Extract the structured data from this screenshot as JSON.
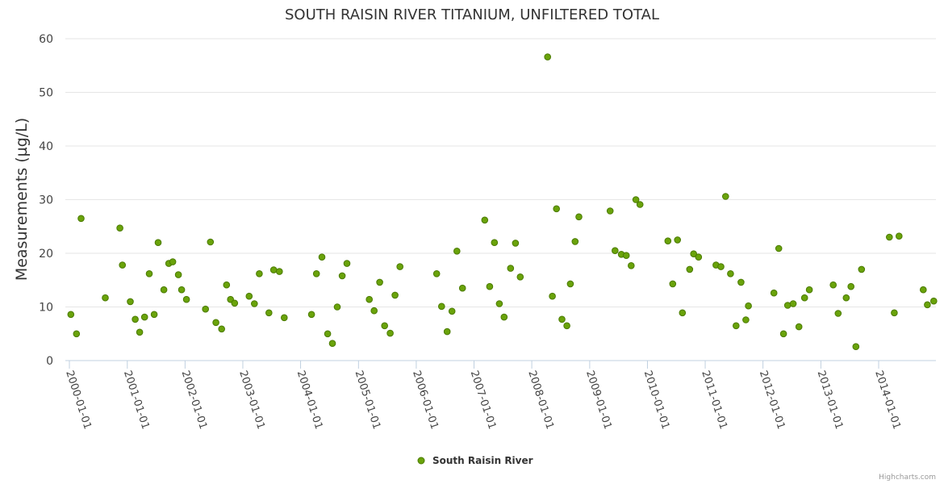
{
  "credits": "Highcharts.com",
  "colors": {
    "marker_fill": "#6aa30a",
    "marker_stroke": "#4a7a00"
  },
  "chart_data": {
    "type": "scatter",
    "title": "SOUTH RAISIN RIVER TITANIUM, UNFILTERED TOTAL",
    "xlabel": "",
    "ylabel": "Measurements (µg/L)",
    "ylim": [
      0,
      60
    ],
    "yticks": [
      "0",
      "10",
      "20",
      "30",
      "40",
      "50",
      "60"
    ],
    "xlim": [
      "2000-01-01",
      "2014-12-31"
    ],
    "xticks": [
      "2000-01-01",
      "2001-01-01",
      "2002-01-01",
      "2003-01-01",
      "2004-01-01",
      "2005-01-01",
      "2006-01-01",
      "2007-01-01",
      "2008-01-01",
      "2009-01-01",
      "2010-01-01",
      "2011-01-01",
      "2012-01-01",
      "2013-01-01",
      "2014-01-01"
    ],
    "grid": true,
    "legend_position": "bottom-center",
    "series": [
      {
        "name": "South Raisin River",
        "points": [
          [
            "2000-01-10",
            8.6
          ],
          [
            "2000-02-15",
            5.0
          ],
          [
            "2000-03-15",
            26.5
          ],
          [
            "2000-08-15",
            11.7
          ],
          [
            "2000-11-15",
            24.7
          ],
          [
            "2000-12-01",
            17.8
          ],
          [
            "2001-01-20",
            11.0
          ],
          [
            "2001-02-20",
            7.7
          ],
          [
            "2001-03-20",
            5.3
          ],
          [
            "2001-04-20",
            8.1
          ],
          [
            "2001-05-20",
            16.2
          ],
          [
            "2001-06-20",
            8.6
          ],
          [
            "2001-07-15",
            22.0
          ],
          [
            "2001-08-20",
            13.2
          ],
          [
            "2001-09-20",
            18.1
          ],
          [
            "2001-10-15",
            18.4
          ],
          [
            "2001-11-20",
            16.0
          ],
          [
            "2001-12-10",
            13.2
          ],
          [
            "2002-01-10",
            11.4
          ],
          [
            "2002-05-10",
            9.6
          ],
          [
            "2002-06-10",
            22.1
          ],
          [
            "2002-07-15",
            7.1
          ],
          [
            "2002-08-20",
            5.9
          ],
          [
            "2002-09-20",
            14.1
          ],
          [
            "2002-10-15",
            11.4
          ],
          [
            "2002-11-10",
            10.7
          ],
          [
            "2003-02-10",
            12.0
          ],
          [
            "2003-03-15",
            10.6
          ],
          [
            "2003-04-15",
            16.2
          ],
          [
            "2003-06-15",
            8.9
          ],
          [
            "2003-07-15",
            16.9
          ],
          [
            "2003-08-20",
            16.6
          ],
          [
            "2003-09-20",
            8.0
          ],
          [
            "2004-03-10",
            8.6
          ],
          [
            "2004-04-10",
            16.2
          ],
          [
            "2004-05-15",
            19.3
          ],
          [
            "2004-06-20",
            5.0
          ],
          [
            "2004-07-20",
            3.2
          ],
          [
            "2004-08-20",
            10.0
          ],
          [
            "2004-09-20",
            15.8
          ],
          [
            "2004-10-20",
            18.1
          ],
          [
            "2005-03-10",
            11.4
          ],
          [
            "2005-04-10",
            9.3
          ],
          [
            "2005-05-15",
            14.6
          ],
          [
            "2005-06-15",
            6.5
          ],
          [
            "2005-07-20",
            5.1
          ],
          [
            "2005-08-20",
            12.2
          ],
          [
            "2005-09-20",
            17.5
          ],
          [
            "2006-05-10",
            16.2
          ],
          [
            "2006-06-10",
            10.1
          ],
          [
            "2006-07-15",
            5.4
          ],
          [
            "2006-08-15",
            9.2
          ],
          [
            "2006-09-15",
            20.4
          ],
          [
            "2006-10-20",
            13.5
          ],
          [
            "2007-03-10",
            26.2
          ],
          [
            "2007-04-10",
            13.8
          ],
          [
            "2007-05-10",
            22.0
          ],
          [
            "2007-06-10",
            10.6
          ],
          [
            "2007-07-10",
            8.1
          ],
          [
            "2007-08-20",
            17.2
          ],
          [
            "2007-09-20",
            21.9
          ],
          [
            "2007-10-20",
            15.6
          ],
          [
            "2008-04-10",
            56.6
          ],
          [
            "2008-05-10",
            12.0
          ],
          [
            "2008-06-05",
            28.3
          ],
          [
            "2008-07-10",
            7.7
          ],
          [
            "2008-08-10",
            6.5
          ],
          [
            "2008-09-01",
            14.3
          ],
          [
            "2008-10-01",
            22.2
          ],
          [
            "2008-10-25",
            26.8
          ],
          [
            "2009-05-10",
            27.9
          ],
          [
            "2009-06-10",
            20.5
          ],
          [
            "2009-07-20",
            19.8
          ],
          [
            "2009-08-20",
            19.6
          ],
          [
            "2009-09-20",
            17.7
          ],
          [
            "2009-10-20",
            30.0
          ],
          [
            "2009-11-15",
            29.1
          ],
          [
            "2010-05-10",
            22.3
          ],
          [
            "2010-06-10",
            14.3
          ],
          [
            "2010-07-10",
            22.5
          ],
          [
            "2010-08-10",
            8.9
          ],
          [
            "2010-09-25",
            17.0
          ],
          [
            "2010-10-20",
            19.9
          ],
          [
            "2010-11-20",
            19.3
          ],
          [
            "2011-03-10",
            17.8
          ],
          [
            "2011-04-10",
            17.5
          ],
          [
            "2011-05-10",
            30.6
          ],
          [
            "2011-06-10",
            16.2
          ],
          [
            "2011-07-15",
            6.5
          ],
          [
            "2011-08-15",
            14.6
          ],
          [
            "2011-09-15",
            7.6
          ],
          [
            "2011-10-01",
            10.2
          ],
          [
            "2012-03-10",
            12.6
          ],
          [
            "2012-04-10",
            20.9
          ],
          [
            "2012-05-10",
            5.0
          ],
          [
            "2012-06-05",
            10.3
          ],
          [
            "2012-07-10",
            10.6
          ],
          [
            "2012-08-15",
            6.3
          ],
          [
            "2012-09-20",
            11.7
          ],
          [
            "2012-10-20",
            13.2
          ],
          [
            "2013-03-20",
            14.1
          ],
          [
            "2013-04-20",
            8.8
          ],
          [
            "2013-06-10",
            11.7
          ],
          [
            "2013-07-10",
            13.8
          ],
          [
            "2013-08-10",
            2.6
          ],
          [
            "2013-09-15",
            17.0
          ],
          [
            "2014-03-10",
            23.0
          ],
          [
            "2014-04-10",
            8.9
          ],
          [
            "2014-05-10",
            23.2
          ],
          [
            "2014-10-10",
            13.2
          ],
          [
            "2014-11-05",
            10.4
          ],
          [
            "2014-12-15",
            11.1
          ]
        ]
      }
    ]
  }
}
